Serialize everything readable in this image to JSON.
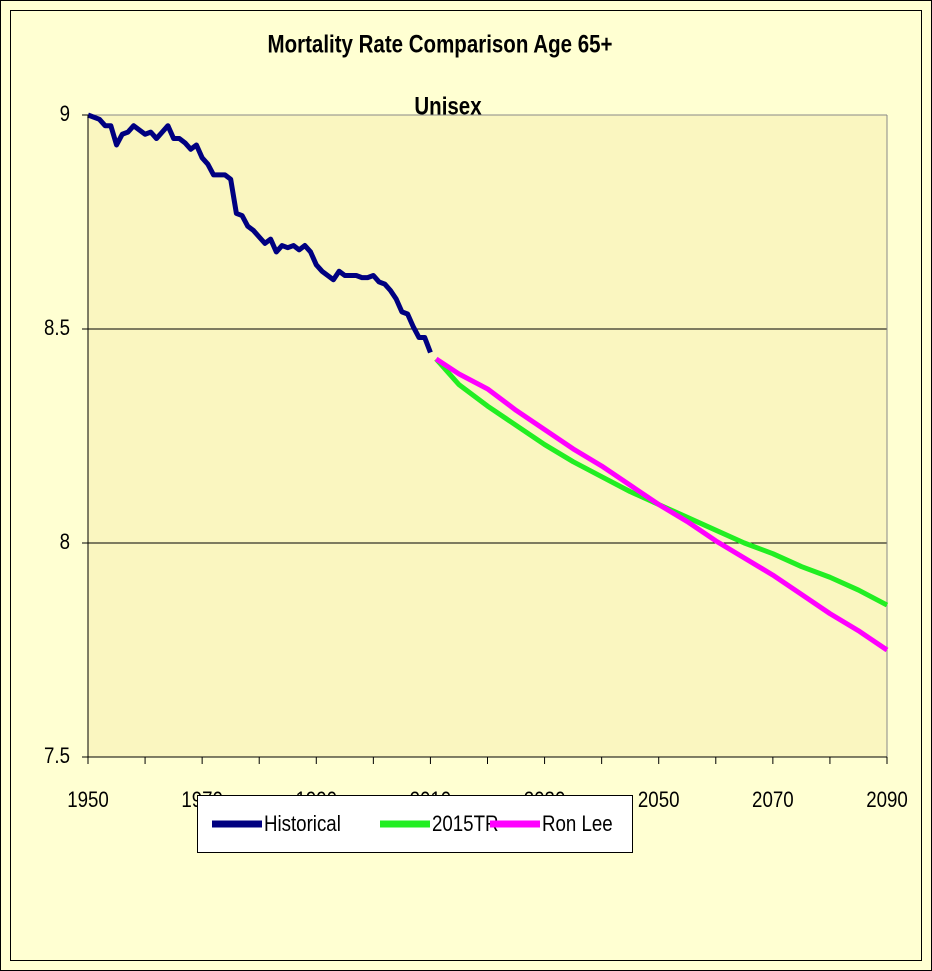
{
  "chart_data": {
    "type": "line",
    "title": "Mortality Rate Comparison Age 65+",
    "subtitle": "Unisex",
    "xlim": [
      1950,
      2090
    ],
    "xticks": [
      1950,
      1970,
      1990,
      2010,
      2030,
      2050,
      2070,
      2090
    ],
    "xminorticks": [
      1960,
      1980,
      2000,
      2020,
      2040,
      2060,
      2080
    ],
    "ylim": [
      7.5,
      9
    ],
    "yticks": [
      7.5,
      8,
      8.5,
      9
    ],
    "grid": true,
    "legend": "bottom",
    "series": [
      {
        "name": "Historical",
        "color": "#000080",
        "x": [
          1950,
          1951,
          1952,
          1953,
          1954,
          1955,
          1956,
          1957,
          1958,
          1959,
          1960,
          1961,
          1962,
          1963,
          1964,
          1965,
          1966,
          1967,
          1968,
          1969,
          1970,
          1971,
          1972,
          1973,
          1974,
          1975,
          1976,
          1977,
          1978,
          1979,
          1980,
          1981,
          1982,
          1983,
          1984,
          1985,
          1986,
          1987,
          1988,
          1989,
          1990,
          1991,
          1992,
          1993,
          1994,
          1995,
          1996,
          1997,
          1998,
          1999,
          2000,
          2001,
          2002,
          2003,
          2004,
          2005,
          2006,
          2007,
          2008,
          2009,
          2010
        ],
        "values": [
          9.0,
          8.995,
          8.99,
          8.975,
          8.975,
          8.93,
          8.955,
          8.96,
          8.975,
          8.965,
          8.955,
          8.96,
          8.945,
          8.96,
          8.975,
          8.945,
          8.945,
          8.935,
          8.92,
          8.93,
          8.9,
          8.885,
          8.86,
          8.86,
          8.86,
          8.85,
          8.77,
          8.765,
          8.74,
          8.73,
          8.715,
          8.7,
          8.71,
          8.68,
          8.695,
          8.69,
          8.695,
          8.685,
          8.695,
          8.68,
          8.65,
          8.635,
          8.625,
          8.615,
          8.635,
          8.625,
          8.625,
          8.625,
          8.62,
          8.62,
          8.625,
          8.61,
          8.605,
          8.59,
          8.57,
          8.54,
          8.535,
          8.505,
          8.48,
          8.48,
          8.445
        ]
      },
      {
        "name": "2015TR",
        "color": "#22ee22",
        "x": [
          2011,
          2015,
          2020,
          2025,
          2030,
          2035,
          2040,
          2045,
          2050,
          2055,
          2060,
          2065,
          2070,
          2075,
          2080,
          2085,
          2090
        ],
        "values": [
          8.43,
          8.37,
          8.32,
          8.275,
          8.23,
          8.19,
          8.155,
          8.12,
          8.09,
          8.06,
          8.03,
          8.0,
          7.975,
          7.945,
          7.92,
          7.89,
          7.855
        ]
      },
      {
        "name": "Ron Lee",
        "color": "#ff00ff",
        "x": [
          2011,
          2015,
          2020,
          2025,
          2030,
          2035,
          2040,
          2045,
          2050,
          2055,
          2060,
          2065,
          2070,
          2075,
          2080,
          2085,
          2090
        ],
        "values": [
          8.43,
          8.395,
          8.36,
          8.31,
          8.265,
          8.22,
          8.18,
          8.135,
          8.09,
          8.05,
          8.005,
          7.965,
          7.925,
          7.88,
          7.835,
          7.795,
          7.75
        ]
      }
    ]
  }
}
